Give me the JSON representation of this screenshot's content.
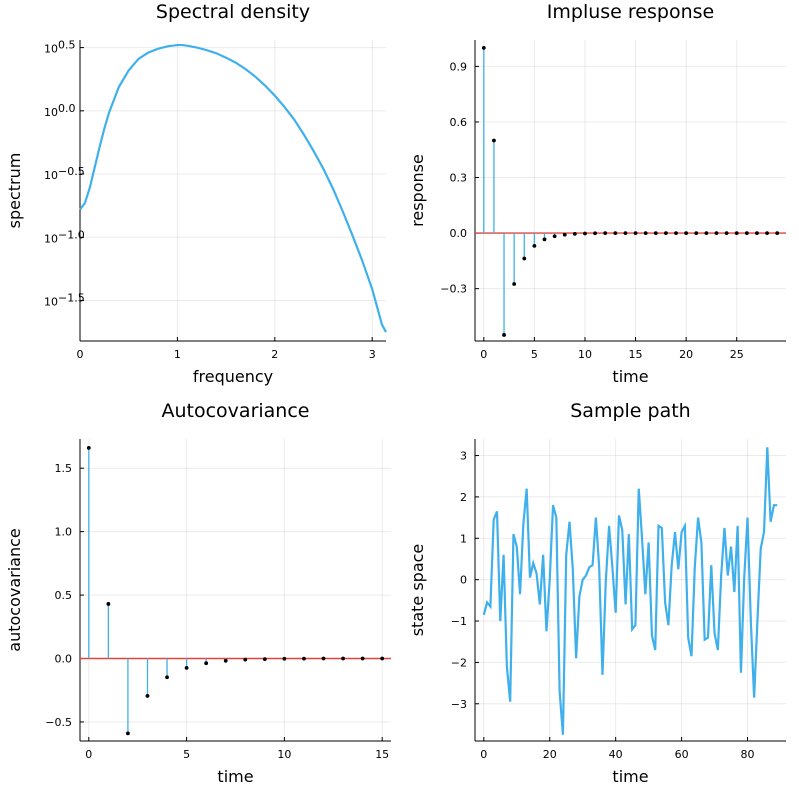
{
  "colors": {
    "series": "#3fb0eb",
    "zero_line": "#e2443c",
    "markers": "#000000"
  },
  "chart_data": [
    {
      "id": "spectral",
      "type": "line",
      "title": "Spectral density",
      "xlabel": "frequency",
      "ylabel": "spectrum",
      "yscale": "log10",
      "xlim": [
        0,
        3.1416
      ],
      "ylim": [
        -1.82,
        0.56
      ],
      "xticks": [
        0,
        1,
        2,
        3
      ],
      "xtick_labels": [
        "0",
        "1",
        "2",
        "3"
      ],
      "yticks": [
        0.5,
        0.0,
        -0.5,
        -1.0,
        -1.5
      ],
      "ytick_bases": [
        "10",
        "10",
        "10",
        "10",
        "10"
      ],
      "ytick_exps": [
        "0.5",
        "0.0",
        "−0.5",
        "−1.0",
        "−1.5"
      ],
      "grid": true,
      "x": [
        0,
        0.05,
        0.1,
        0.15,
        0.2,
        0.25,
        0.3,
        0.4,
        0.5,
        0.6,
        0.7,
        0.8,
        0.9,
        1.0,
        1.05,
        1.1,
        1.2,
        1.3,
        1.4,
        1.5,
        1.6,
        1.7,
        1.8,
        1.9,
        2.0,
        2.1,
        2.2,
        2.3,
        2.4,
        2.5,
        2.6,
        2.7,
        2.8,
        2.9,
        3.0,
        3.05,
        3.1,
        3.1416
      ],
      "log10_y": [
        -0.78,
        -0.73,
        -0.61,
        -0.45,
        -0.29,
        -0.14,
        -0.01,
        0.19,
        0.32,
        0.41,
        0.46,
        0.49,
        0.51,
        0.52,
        0.52,
        0.515,
        0.5,
        0.48,
        0.455,
        0.42,
        0.38,
        0.33,
        0.27,
        0.2,
        0.12,
        0.03,
        -0.07,
        -0.19,
        -0.32,
        -0.46,
        -0.62,
        -0.8,
        -0.99,
        -1.19,
        -1.41,
        -1.55,
        -1.69,
        -1.75
      ]
    },
    {
      "id": "impulse",
      "type": "stem",
      "title": "Impluse response",
      "xlabel": "time",
      "ylabel": "response",
      "xlim": [
        -0.87,
        29.87
      ],
      "ylim": [
        -0.5826,
        1.0426
      ],
      "xticks": [
        0,
        5,
        10,
        15,
        20,
        25
      ],
      "xtick_labels": [
        "0",
        "5",
        "10",
        "15",
        "20",
        "25"
      ],
      "yticks": [
        0.9,
        0.6,
        0.3,
        0.0,
        -0.3
      ],
      "ytick_labels": [
        "0.9",
        "0.6",
        "0.3",
        "0.0",
        "−0.3"
      ],
      "grid": true,
      "x": [
        0,
        1,
        2,
        3,
        4,
        5,
        6,
        7,
        8,
        9,
        10,
        11,
        12,
        13,
        14,
        15,
        16,
        17,
        18,
        19,
        20,
        21,
        22,
        23,
        24,
        25,
        26,
        27,
        28,
        29
      ],
      "y": [
        1.0,
        0.5,
        -0.55,
        -0.275,
        -0.137,
        -0.069,
        -0.034,
        -0.017,
        -0.009,
        -0.004,
        -0.002,
        -0.001,
        0,
        0,
        0,
        0,
        0,
        0,
        0,
        0,
        0,
        0,
        0,
        0,
        0,
        0,
        0,
        0,
        0,
        0
      ]
    },
    {
      "id": "autocov",
      "type": "stem",
      "title": "Autocovariance",
      "xlabel": "time",
      "ylabel": "autocovariance",
      "xlim": [
        -0.45,
        15.45
      ],
      "ylim": [
        -0.6502,
        1.7302
      ],
      "xticks": [
        0,
        5,
        10,
        15
      ],
      "xtick_labels": [
        "0",
        "5",
        "10",
        "15"
      ],
      "yticks": [
        1.5,
        1.0,
        0.5,
        0.0,
        -0.5
      ],
      "ytick_labels": [
        "1.5",
        "1.0",
        "0.5",
        "0.0",
        "−0.5"
      ],
      "grid": true,
      "x": [
        0,
        1,
        2,
        3,
        4,
        5,
        6,
        7,
        8,
        9,
        10,
        11,
        12,
        13,
        14,
        15
      ],
      "y": [
        1.66,
        0.43,
        -0.59,
        -0.295,
        -0.148,
        -0.074,
        -0.037,
        -0.018,
        -0.009,
        -0.005,
        -0.002,
        -0.001,
        0,
        0,
        0,
        0
      ]
    },
    {
      "id": "sample",
      "type": "line",
      "title": "Sample path",
      "xlabel": "time",
      "ylabel": "state space",
      "xlim": [
        -2.67,
        91.67
      ],
      "ylim": [
        -3.9,
        3.4
      ],
      "xticks": [
        0,
        20,
        40,
        60,
        80
      ],
      "xtick_labels": [
        "0",
        "20",
        "40",
        "60",
        "80"
      ],
      "yticks": [
        3,
        2,
        1,
        0,
        -1,
        -2,
        -3
      ],
      "ytick_labels": [
        "3",
        "2",
        "1",
        "0",
        "−1",
        "−2",
        "−3"
      ],
      "grid": true,
      "x": [
        0,
        1,
        2,
        3,
        4,
        5,
        6,
        7,
        8,
        9,
        10,
        11,
        12,
        13,
        14,
        15,
        16,
        17,
        18,
        19,
        20,
        21,
        22,
        23,
        24,
        25,
        26,
        27,
        28,
        29,
        30,
        31,
        32,
        33,
        34,
        35,
        36,
        37,
        38,
        39,
        40,
        41,
        42,
        43,
        44,
        45,
        46,
        47,
        48,
        49,
        50,
        51,
        52,
        53,
        54,
        55,
        56,
        57,
        58,
        59,
        60,
        61,
        62,
        63,
        64,
        65,
        66,
        67,
        68,
        69,
        70,
        71,
        72,
        73,
        74,
        75,
        76,
        77,
        78,
        79,
        80,
        81,
        82,
        83,
        84,
        85,
        86,
        87,
        88,
        89
      ],
      "y": [
        -0.85,
        -0.55,
        -0.65,
        1.45,
        1.65,
        -1.0,
        0.6,
        -2.1,
        -2.95,
        1.1,
        0.8,
        -0.35,
        1.35,
        2.2,
        0.05,
        0.4,
        0.15,
        -0.6,
        0.6,
        -1.25,
        0.0,
        1.8,
        1.5,
        -2.7,
        -3.75,
        0.6,
        1.4,
        0.25,
        -1.9,
        -0.4,
        0.0,
        0.1,
        0.3,
        0.35,
        1.5,
        0.3,
        -2.3,
        -0.05,
        1.3,
        0.3,
        -0.8,
        1.55,
        1.2,
        -0.6,
        1.1,
        -1.2,
        -1.1,
        2.2,
        1.0,
        -0.35,
        0.9,
        -1.35,
        -1.7,
        1.3,
        1.25,
        -0.55,
        -1.1,
        0.35,
        1.15,
        0.25,
        1.15,
        1.3,
        -1.4,
        -1.85,
        0.3,
        1.5,
        0.9,
        -1.45,
        -1.4,
        0.35,
        -1.3,
        -1.7,
        0.1,
        1.25,
        0.1,
        0.8,
        -0.3,
        1.3,
        -2.25,
        0.05,
        1.5,
        -1.0,
        -2.85,
        -1.0,
        0.75,
        1.15,
        3.2,
        1.4,
        1.8,
        1.8
      ]
    }
  ]
}
